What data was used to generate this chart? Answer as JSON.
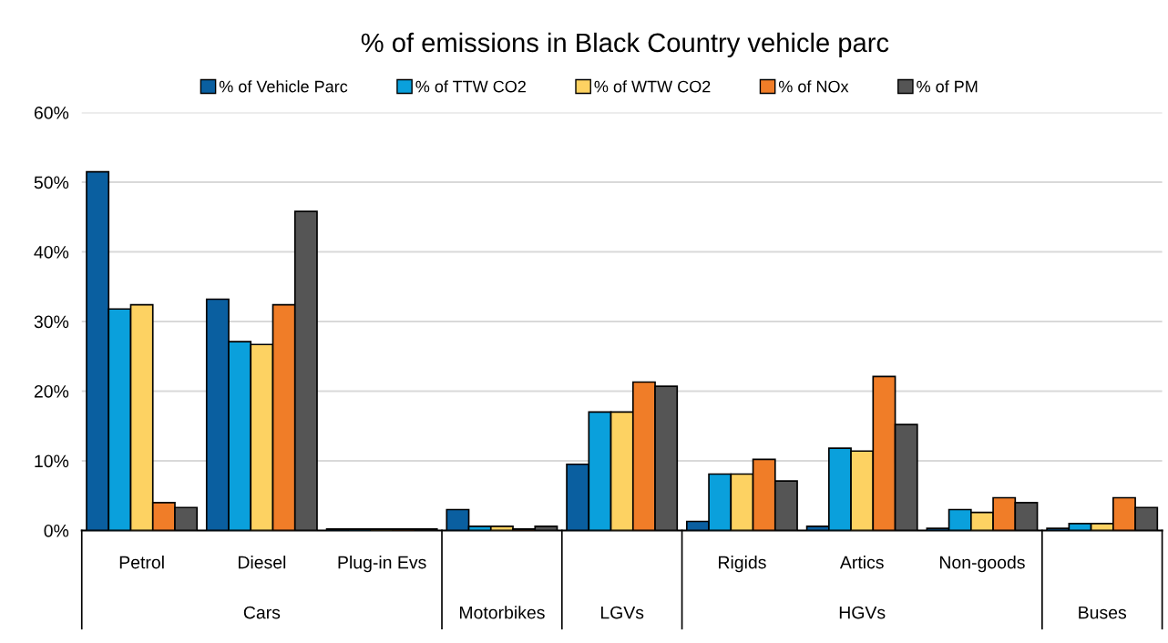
{
  "chart_data": {
    "type": "bar",
    "title": "% of emissions in Black Country vehicle parc",
    "categories": [
      "Petrol",
      "Diesel",
      "Plug-in Evs",
      null,
      null,
      "Rigids",
      "Artics",
      "Non-goods",
      null
    ],
    "annotations": [
      "Cars",
      "Motorbikes",
      "LGVs",
      "HGVs",
      "Buses"
    ],
    "series": [
      {
        "name": "% of Vehicle Parc",
        "color": "#0a5fa0",
        "values": [
          51.5,
          33.2,
          0.2,
          3.0,
          9.5,
          1.3,
          0.6,
          0.3,
          0.3
        ]
      },
      {
        "name": "% of TTW CO2",
        "color": "#0aa0dc",
        "values": [
          31.8,
          27.1,
          0.2,
          0.6,
          17.0,
          8.1,
          11.8,
          3.0,
          1.0
        ]
      },
      {
        "name": "% of WTW CO2",
        "color": "#fdd262",
        "values": [
          32.4,
          26.7,
          0.2,
          0.6,
          17.0,
          8.1,
          11.4,
          2.6,
          1.0
        ]
      },
      {
        "name": "% of NOx",
        "color": "#f07d28",
        "values": [
          4.0,
          32.4,
          0.2,
          0.2,
          21.3,
          10.2,
          22.1,
          4.7,
          4.7
        ]
      },
      {
        "name": "% of PM",
        "color": "#555555",
        "values": [
          3.3,
          45.8,
          0.2,
          0.6,
          20.7,
          7.1,
          15.2,
          4.0,
          3.3
        ]
      }
    ],
    "ylim": [
      0,
      60
    ],
    "yticks": [
      {
        "value": 0,
        "label": "0%"
      },
      {
        "value": 10,
        "label": "10%"
      },
      {
        "value": 20,
        "label": "20%"
      },
      {
        "value": 30,
        "label": "30%"
      },
      {
        "value": 40,
        "label": "40%"
      },
      {
        "value": 50,
        "label": "50%"
      },
      {
        "value": 60,
        "label": "60%"
      }
    ],
    "grid": "y",
    "legend": "top"
  }
}
